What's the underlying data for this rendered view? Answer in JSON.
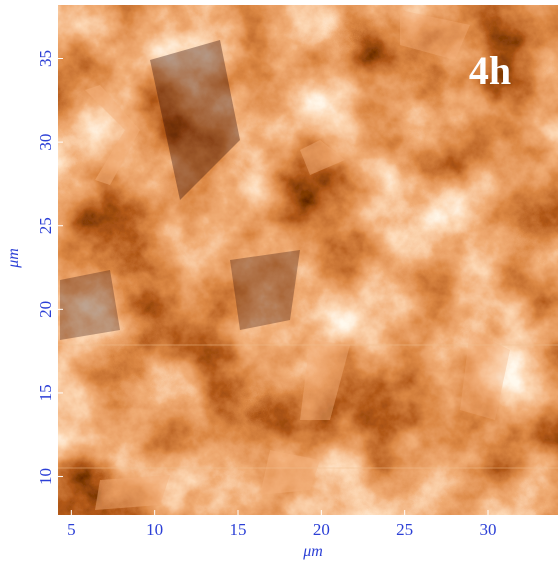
{
  "chart_data": {
    "type": "image",
    "annotation": "4h",
    "x_label": "μm",
    "y_label": "μm",
    "xlim": [
      4.2,
      34.2
    ],
    "ylim": [
      7.7,
      38.2
    ],
    "xticks": [
      5,
      10,
      15,
      20,
      25,
      30
    ],
    "yticks": [
      10,
      15,
      20,
      25,
      30,
      35
    ]
  }
}
